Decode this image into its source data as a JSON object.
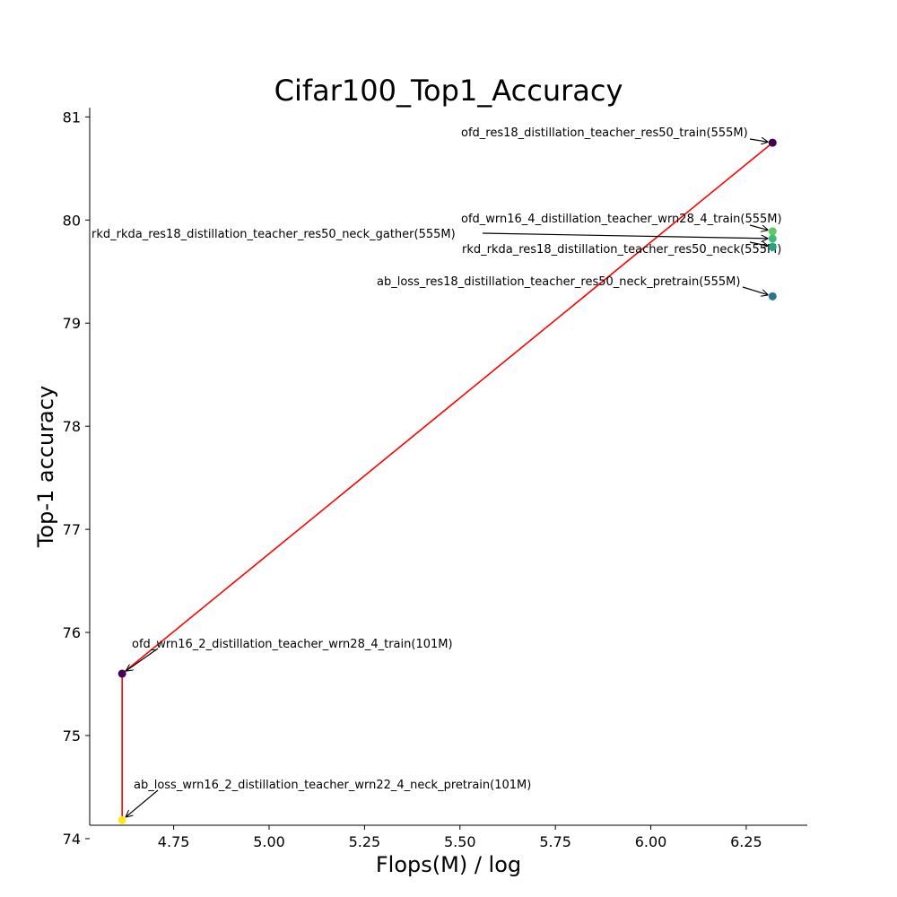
{
  "chart_data": {
    "type": "scatter",
    "title": "Cifar100_Top1_Accuracy",
    "xlabel": "Flops(M) / log",
    "ylabel": "Top-1 accuracy",
    "xlim": [
      4.53,
      6.41
    ],
    "ylim": [
      74.13,
      81.09
    ],
    "xticks": [
      4.75,
      5.0,
      5.25,
      5.5,
      5.75,
      6.0,
      6.25
    ],
    "xtick_labels": [
      "4.75",
      "5.00",
      "5.25",
      "5.50",
      "5.75",
      "6.00",
      "6.25"
    ],
    "yticks": [
      74,
      75,
      76,
      77,
      78,
      79,
      80,
      81
    ],
    "ytick_labels": [
      "74",
      "75",
      "76",
      "77",
      "78",
      "79",
      "80",
      "81"
    ],
    "grid": false,
    "points": [
      {
        "label": "ofd_res18_distillation_teacher_res50_train(555M)",
        "x": 6.319,
        "y": 80.75,
        "color": "#440154"
      },
      {
        "label": "ofd_wrn16_4_distillation_teacher_wrn28_4_train(555M)",
        "x": 6.319,
        "y": 79.89,
        "color": "#5ec962"
      },
      {
        "label": "rkd_rkda_res18_distillation_teacher_res50_neck_gather(555M)",
        "x": 6.319,
        "y": 79.82,
        "color": "#3bbb75"
      },
      {
        "label": "rkd_rkda_res18_distillation_teacher_res50_neck(555M)",
        "x": 6.319,
        "y": 79.74,
        "color": "#21a685"
      },
      {
        "label": "ab_loss_res18_distillation_teacher_res50_neck_pretrain(555M)",
        "x": 6.319,
        "y": 79.26,
        "color": "#2a788e"
      },
      {
        "label": "ofd_wrn16_2_distillation_teacher_wrn28_4_train(101M)",
        "x": 4.615,
        "y": 75.6,
        "color": "#440154"
      },
      {
        "label": "ab_loss_wrn16_2_distillation_teacher_wrn22_4_neck_pretrain(101M)",
        "x": 4.615,
        "y": 74.18,
        "color": "#fde725"
      }
    ],
    "frontier": [
      [
        4.615,
        74.18
      ],
      [
        4.615,
        75.6
      ],
      [
        6.319,
        80.75
      ]
    ],
    "frontier_color": "#ff0000"
  }
}
